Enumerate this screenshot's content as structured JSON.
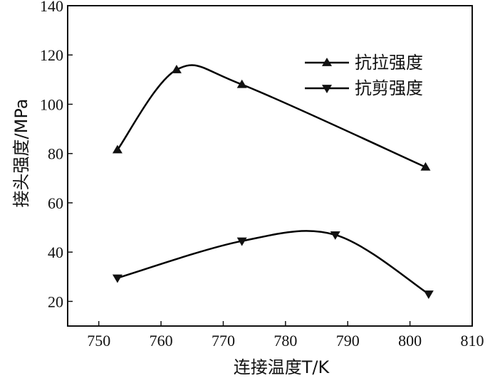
{
  "chart_data": {
    "type": "line",
    "xlabel": "连接温度T/K",
    "ylabel": "接头强度/MPa",
    "xlim": [
      745,
      810
    ],
    "ylim": [
      10,
      140
    ],
    "xticks": [
      750,
      760,
      770,
      780,
      790,
      800,
      810
    ],
    "yticks": [
      20,
      40,
      60,
      80,
      100,
      120,
      140
    ],
    "legend_position": "top-right",
    "grid": false,
    "series": [
      {
        "name": "抗拉强度",
        "marker": "triangle-up",
        "color": "#000000",
        "x": [
          753,
          762.5,
          773,
          802.5
        ],
        "y": [
          81.5,
          114,
          108,
          74.5
        ]
      },
      {
        "name": "抗剪强度",
        "marker": "triangle-down",
        "color": "#000000",
        "x": [
          753,
          773,
          788,
          803
        ],
        "y": [
          29.5,
          44.5,
          47,
          23
        ]
      }
    ]
  }
}
